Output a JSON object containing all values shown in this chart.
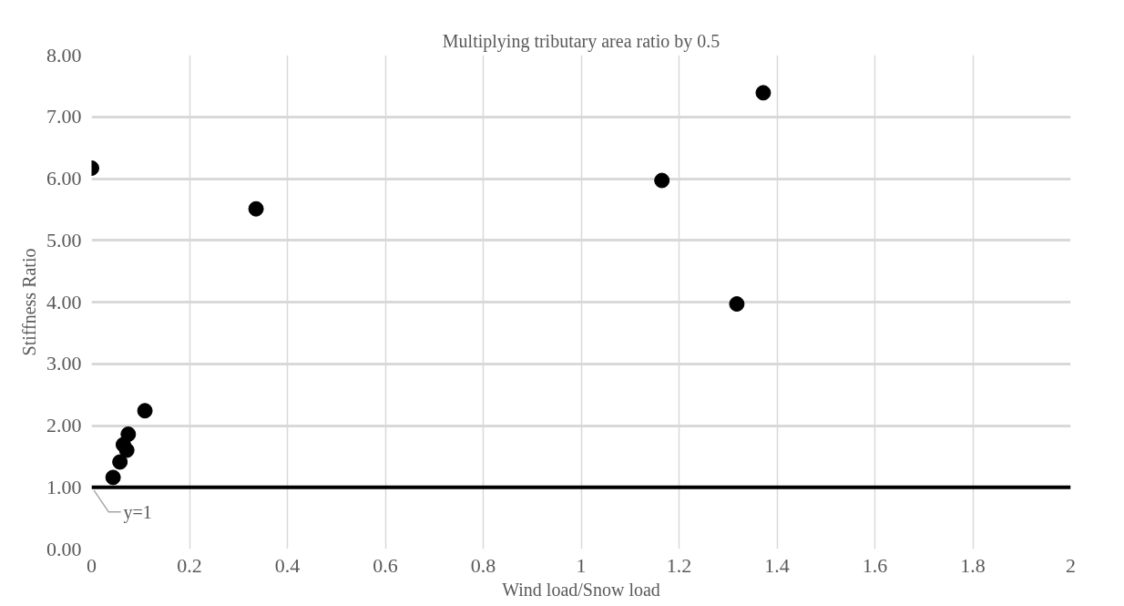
{
  "chart_data": {
    "type": "scatter",
    "title": "Multiplying tributary area ratio by 0.5",
    "xlabel": "Wind load/Snow load",
    "ylabel": "Stiffness Ratio",
    "x": [
      0,
      0.336,
      1.165,
      1.318,
      1.372,
      0.109,
      0.078,
      0.075,
      0.065,
      0.072,
      0.064,
      0.058,
      0.044
    ],
    "series": [
      {
        "color": "#000000",
        "values": [
          6.17,
          5.51,
          5.97,
          3.97,
          7.39,
          2.24,
          null,
          1.86,
          1.69,
          1.6,
          null,
          1.41,
          1.16
        ]
      }
    ],
    "xlim": [
      0,
      2
    ],
    "ylim": [
      0,
      8
    ],
    "xticks": [
      0,
      0.2,
      0.4,
      0.6,
      0.8,
      1,
      1.2,
      1.4,
      1.6,
      1.8,
      2
    ],
    "yticks": [
      {
        "value": 0,
        "label": "0.00"
      },
      {
        "value": 1,
        "label": "1.00"
      },
      {
        "value": 2,
        "label": "2.00"
      },
      {
        "value": 3,
        "label": "3.00"
      },
      {
        "value": 4,
        "label": "4.00"
      },
      {
        "value": 5,
        "label": "5.00"
      },
      {
        "value": 6,
        "label": "6.00"
      },
      {
        "value": 7,
        "label": "7.00"
      },
      {
        "value": 8,
        "label": "8.00"
      }
    ],
    "grid": true,
    "marker": "circle",
    "ref_lines": [
      {
        "axis": "y",
        "value": 1,
        "label": "y=1",
        "color": "#000000"
      }
    ]
  }
}
